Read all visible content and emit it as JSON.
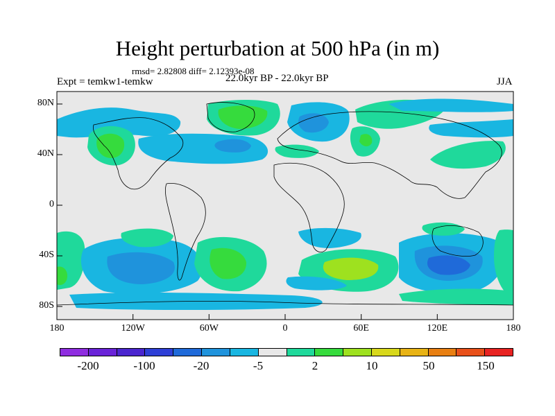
{
  "title": "Height perturbation at 500 hPa (in m)",
  "stats": "rmsd= 2.82808 diff= 2.12393e-08",
  "experiment": "Expt = temkw1-temkw",
  "period": "22.0kyr BP - 22.0kyr BP",
  "season": "JJA",
  "y_axis_labels": [
    "80N",
    "40N",
    "0",
    "40S",
    "80S"
  ],
  "x_axis_labels": [
    "180",
    "120W",
    "60W",
    "0",
    "60E",
    "120E",
    "180"
  ],
  "colorbar": {
    "colors": [
      "#8f2de0",
      "#6a23d8",
      "#4b26cf",
      "#2e3fd6",
      "#1f6ad9",
      "#1f93dc",
      "#19b6e1",
      "#e8e8e8",
      "#1fd99b",
      "#36db3d",
      "#9ee11f",
      "#d8d81b",
      "#e8b315",
      "#e87f12",
      "#e8501a",
      "#e82322"
    ],
    "labels": [
      "-200",
      "-100",
      "-20",
      "-5",
      "2",
      "10",
      "50",
      "150"
    ]
  },
  "colors": {
    "background": "#e8e8e8",
    "coast": "#000000"
  }
}
